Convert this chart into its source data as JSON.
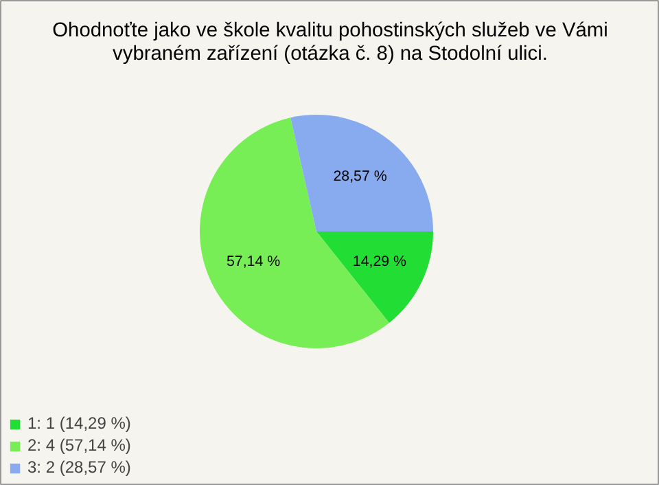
{
  "chart_data": {
    "type": "pie",
    "title": "Ohodnoťte jako ve škole kvalitu pohostinských služeb ve Vámi\nvybraném zařízení (otázka č. 8) na Stodolní ulici.",
    "categories": [
      "1: 1 (14,29 %)",
      "2: 4 (57,14 %)",
      "3: 2 (28,57 %)"
    ],
    "values": [
      14.29,
      57.14,
      28.57
    ],
    "colors": [
      "#22dd33",
      "#77ee55",
      "#88aaee"
    ],
    "value_labels": [
      "14,29 %",
      "57,14 %",
      "28,57 %"
    ],
    "legend": "bottom left"
  }
}
